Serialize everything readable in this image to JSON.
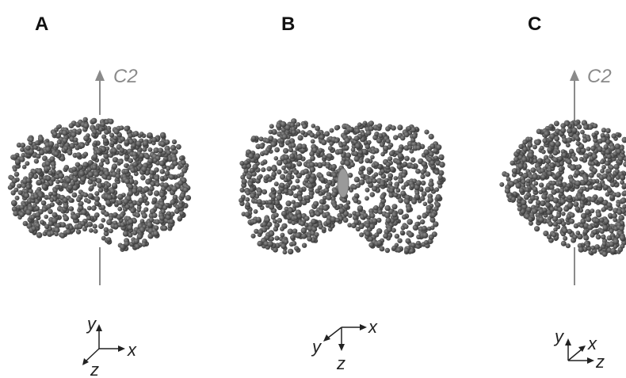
{
  "panels": [
    {
      "label": "A",
      "c2_label": "C2",
      "axes": {
        "y": "y",
        "x": "x",
        "z": "z"
      }
    },
    {
      "label": "B",
      "axes": {
        "y": "y",
        "x": "x",
        "z": "z"
      }
    },
    {
      "label": "C",
      "c2_label": "C2",
      "axes": {
        "y": "y",
        "x": "x",
        "z": "z"
      }
    }
  ],
  "colors": {
    "atom": "#555555",
    "atom_highlight": "#8c8c8c",
    "symmetry_axis": "#8a8a8a",
    "coordinate_axes": "#222222",
    "central_ellipse": "#9a9a9a"
  }
}
